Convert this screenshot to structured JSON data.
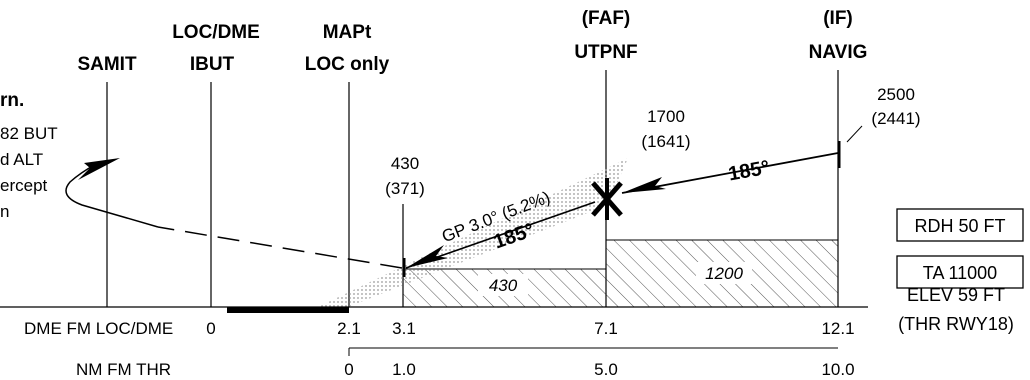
{
  "fixes": {
    "samit": {
      "name": "SAMIT"
    },
    "locdme": {
      "line1": "LOC/DME",
      "line2": "IBUT"
    },
    "mapt": {
      "line1": "MAPt",
      "line2": "LOC only"
    },
    "faf": {
      "line1": "(FAF)",
      "line2": "UTPNF"
    },
    "if": {
      "line1": "(IF)",
      "line2": "NAVIG"
    }
  },
  "missed_approach_text": [
    "rn.",
    "82 BUT",
    "d ALT",
    "ercept",
    "n"
  ],
  "altitudes": {
    "mapt": {
      "msl": "430",
      "hat": "(371)"
    },
    "faf": {
      "msl": "1700",
      "hat": "(1641)"
    },
    "if": {
      "msl": "2500",
      "hat": "(2441)"
    }
  },
  "glidepath_label": "GP 3.0° (5.2%)",
  "course_labels": {
    "final": "185°",
    "intermediate": "185°"
  },
  "min_altitudes": {
    "segment1": "430",
    "segment2": "1200"
  },
  "info_boxes": {
    "rdh": "RDH 50 FT",
    "ta": "TA 11000"
  },
  "elevation": {
    "line1": "ELEV 59 FT",
    "line2": "(THR RWY18)"
  },
  "dme_scale": {
    "label": "DME FM LOC/DME",
    "ticks": [
      "0",
      "2.1",
      "3.1",
      "7.1",
      "12.1"
    ]
  },
  "nm_scale": {
    "label": "NM FM THR",
    "ticks": [
      "0",
      "1.0",
      "5.0",
      "10.0"
    ]
  }
}
